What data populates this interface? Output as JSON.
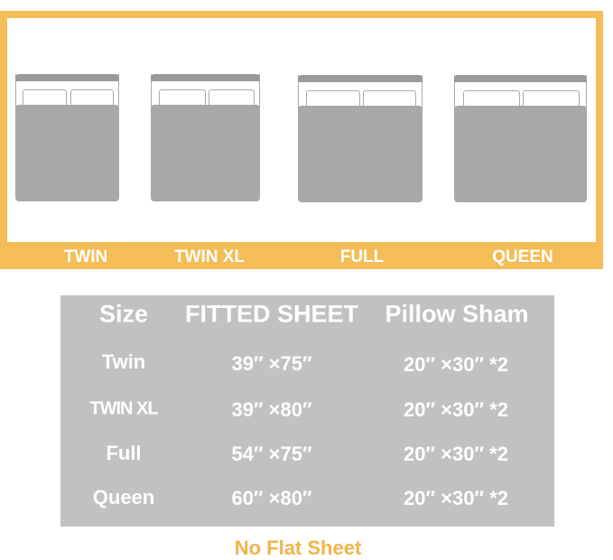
{
  "colors": {
    "accent": "#f5bd57",
    "table_bg": "#c1c1c1",
    "bed": "#a8a8a8"
  },
  "beds": [
    {
      "label": "TWIN"
    },
    {
      "label": "TWIN XL"
    },
    {
      "label": "FULL"
    },
    {
      "label": "QUEEN"
    }
  ],
  "table": {
    "headers": [
      "Size",
      "FITTED SHEET",
      "Pillow Sham"
    ],
    "rows": [
      [
        "Twin",
        "39″ ×75″",
        "20″ ×30″ *2"
      ],
      [
        "TWIN XL",
        "39″ ×80″",
        "20″ ×30″ *2"
      ],
      [
        "Full",
        "54″ ×75″",
        "20″ ×30″ *2"
      ],
      [
        "Queen",
        "60″ ×80″",
        "20″ ×30″ *2"
      ]
    ]
  },
  "note": "No Flat Sheet"
}
